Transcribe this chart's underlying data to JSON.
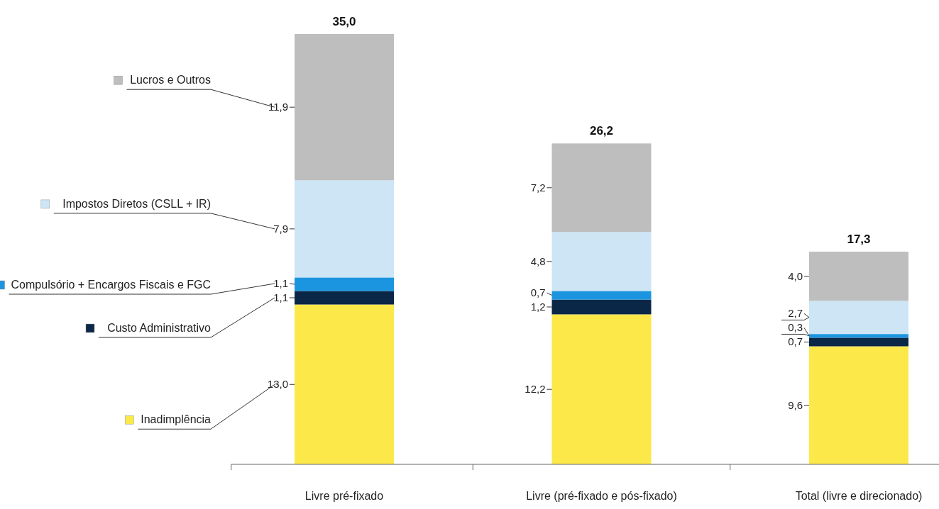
{
  "chart_data": {
    "type": "bar",
    "stacked": true,
    "legend": "left",
    "categories": [
      "Livre pré-fixado",
      "Livre (pré-fixado e pós-fixado)",
      "Total (livre e direcionado)"
    ],
    "series": [
      {
        "name": "Inadimplência",
        "color": "#fde84a",
        "values": [
          13.0,
          12.2,
          9.6
        ],
        "value_labels": [
          "13,0",
          "12,2",
          "9,6"
        ]
      },
      {
        "name": "Custo Administrativo",
        "color": "#0b2747",
        "values": [
          1.1,
          1.2,
          0.7
        ],
        "value_labels": [
          "1,1",
          "1,2",
          "0,7"
        ]
      },
      {
        "name": "Compulsório + Encargos Fiscais e FGC",
        "color": "#1b95e0",
        "values": [
          1.1,
          0.7,
          0.3
        ],
        "value_labels": [
          "1,1",
          "0,7",
          "0,3"
        ]
      },
      {
        "name": "Impostos Diretos (CSLL + IR)",
        "color": "#cde5f4",
        "values": [
          7.9,
          4.8,
          2.7
        ],
        "value_labels": [
          "7,9",
          "4,8",
          "2,7"
        ]
      },
      {
        "name": "Lucros e Outros",
        "color": "#bebebf",
        "values": [
          11.9,
          7.2,
          4.0
        ],
        "value_labels": [
          "11,9",
          "7,2",
          "4,0"
        ]
      }
    ],
    "totals": [
      "35,0",
      "26,2",
      "17,3"
    ]
  }
}
